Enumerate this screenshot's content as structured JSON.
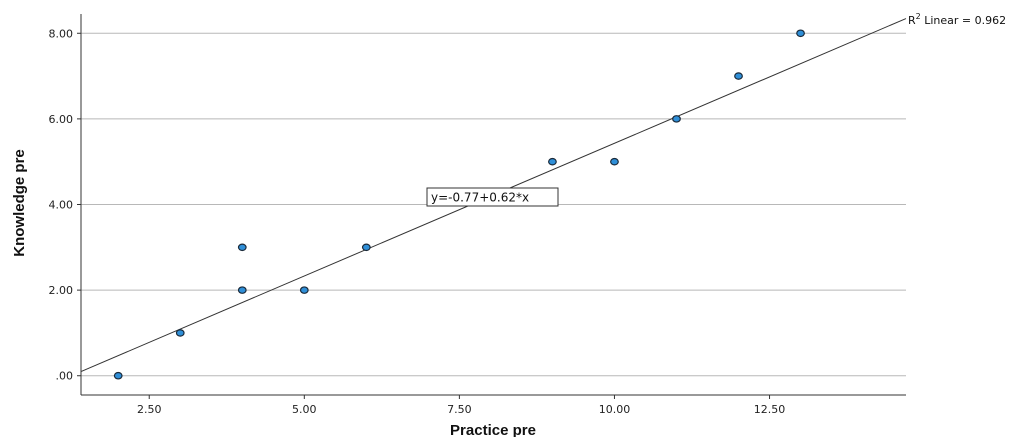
{
  "chart_data": {
    "type": "scatter",
    "xlabel": "Practice pre",
    "ylabel": "Knowledge pre",
    "xlim": [
      1.4,
      14.7
    ],
    "ylim": [
      -0.45,
      8.45
    ],
    "x_ticks": [
      2.5,
      5.0,
      7.5,
      10.0,
      12.5
    ],
    "x_tick_labels": [
      "2.50",
      "5.00",
      "7.50",
      "10.00",
      "12.50"
    ],
    "y_ticks": [
      0,
      2,
      4,
      6,
      8
    ],
    "y_tick_labels": [
      ".00",
      "2.00",
      "4.00",
      "6.00",
      "8.00"
    ],
    "grid": "horizontal",
    "series": [
      {
        "points": [
          {
            "x": 2,
            "y": 0
          },
          {
            "x": 3,
            "y": 1
          },
          {
            "x": 4,
            "y": 2
          },
          {
            "x": 4,
            "y": 3
          },
          {
            "x": 5,
            "y": 2
          },
          {
            "x": 6,
            "y": 3
          },
          {
            "x": 9,
            "y": 5
          },
          {
            "x": 10,
            "y": 5
          },
          {
            "x": 11,
            "y": 6
          },
          {
            "x": 12,
            "y": 7
          },
          {
            "x": 13,
            "y": 8
          }
        ]
      }
    ],
    "fit_line": {
      "intercept": -0.77,
      "slope": 0.62,
      "equation_label": "y=-0.77+0.62*x",
      "r2_prefix": "R",
      "r2_sup": "2",
      "r2_label": " Linear = 0.962"
    },
    "colors": {
      "point_fill": "#2f8fd8",
      "point_stroke": "#1a2a3a",
      "line": "#333333",
      "grid": "#b8b8b8"
    }
  }
}
